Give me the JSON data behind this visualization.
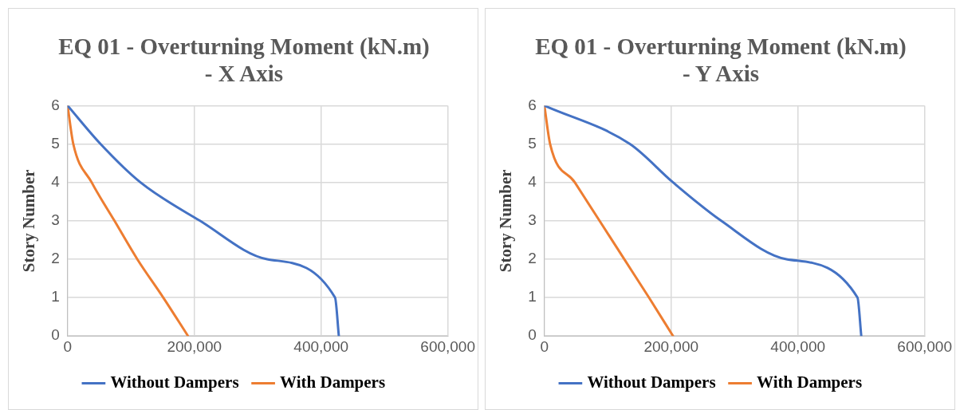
{
  "chart_data": [
    {
      "type": "line",
      "title": "EQ 01 - Overturning Moment (kN.m) - X Axis",
      "ylabel": "Story Number",
      "xlim": [
        0,
        600000
      ],
      "xticks": [
        0,
        {
          "value": 200000,
          "label": "200,000"
        },
        {
          "value": 400000,
          "label": "400,000"
        },
        {
          "value": 600000,
          "label": "600,000"
        }
      ],
      "ylim": [
        0,
        6
      ],
      "yticks": [
        0,
        1,
        2,
        3,
        4,
        5,
        6
      ],
      "grid": true,
      "legend": "bottom",
      "marker": "none",
      "line_style": "solid",
      "series": [
        {
          "name": "Without Dampers",
          "color": "#4472c4",
          "x": [
            428000,
            422000,
            315000,
            209000,
            115000,
            52000,
            0
          ],
          "values": [
            0,
            1,
            2,
            3,
            4,
            5,
            6
          ]
        },
        {
          "name": "With Dampers",
          "color": "#ed7d31",
          "x": [
            190000,
            151000,
            110000,
            74000,
            38000,
            9000,
            0
          ],
          "values": [
            0,
            1,
            2,
            3,
            4,
            5,
            6
          ]
        }
      ]
    },
    {
      "type": "line",
      "title": "EQ 01 - Overturning Moment (kN.m) - Y Axis",
      "ylabel": "Story Number",
      "xlim": [
        0,
        600000
      ],
      "xticks": [
        0,
        {
          "value": 200000,
          "label": "200,000"
        },
        {
          "value": 400000,
          "label": "400,000"
        },
        {
          "value": 600000,
          "label": "600,000"
        }
      ],
      "ylim": [
        0,
        6
      ],
      "yticks": [
        0,
        1,
        2,
        3,
        4,
        5,
        6
      ],
      "grid": true,
      "legend": "bottom",
      "marker": "none",
      "line_style": "solid",
      "series": [
        {
          "name": "Without Dampers",
          "color": "#4472c4",
          "x": [
            500000,
            494000,
            382000,
            279000,
            203000,
            135000,
            0
          ],
          "values": [
            0,
            1,
            2,
            3,
            4,
            5,
            6
          ]
        },
        {
          "name": "With Dampers",
          "color": "#ed7d31",
          "x": [
            203000,
            165000,
            126000,
            87000,
            48000,
            9000,
            0
          ],
          "values": [
            0,
            1,
            2,
            3,
            4,
            5,
            6
          ]
        }
      ]
    }
  ]
}
